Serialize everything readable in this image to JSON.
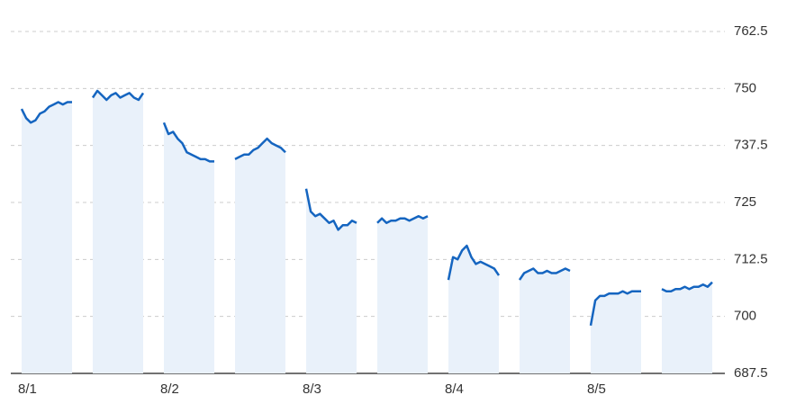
{
  "chart_data": {
    "type": "line",
    "categories": [
      "8/1",
      null,
      "8/2",
      null,
      "8/3",
      null,
      "8/4",
      null,
      "8/5",
      null
    ],
    "sessions": [
      {
        "values": [
          745.5,
          743.5,
          742.5,
          743,
          744.5,
          745,
          746,
          746.5,
          747,
          746.5,
          747,
          747
        ]
      },
      {
        "values": [
          748,
          749.5,
          748.5,
          747.5,
          748.5,
          749,
          748,
          748.5,
          749,
          748,
          747.5,
          749
        ]
      },
      {
        "values": [
          742.5,
          740,
          740.5,
          739,
          738,
          736,
          735.5,
          735,
          734.5,
          734.5,
          734,
          734
        ]
      },
      {
        "values": [
          734.5,
          735,
          735.5,
          735.5,
          736.5,
          737,
          738,
          739,
          738,
          737.5,
          737,
          736
        ]
      },
      {
        "values": [
          728,
          723,
          722,
          722.5,
          721.5,
          720.5,
          721,
          719,
          720,
          720,
          721,
          720.5
        ]
      },
      {
        "values": [
          720.5,
          721.5,
          720.5,
          721,
          721,
          721.5,
          721.5,
          721,
          721.5,
          722,
          721.5,
          722
        ]
      },
      {
        "values": [
          708,
          713,
          712.5,
          714.5,
          715.5,
          713,
          711.5,
          712,
          711.5,
          711,
          710.5,
          709
        ]
      },
      {
        "values": [
          708,
          709.5,
          710,
          710.5,
          709.5,
          709.5,
          710,
          709.5,
          709.5,
          710,
          710.5,
          710
        ]
      },
      {
        "values": [
          698,
          703.5,
          704.5,
          704.5,
          705,
          705,
          705,
          705.5,
          705,
          705.5,
          705.5,
          705.5
        ]
      },
      {
        "values": [
          706,
          705.5,
          705.5,
          706,
          706,
          706.5,
          706,
          706.5,
          706.5,
          707,
          706.5,
          707.5
        ]
      }
    ],
    "color": "#1565c0",
    "fill_color": "#e9f1fa",
    "ylim": [
      687.5,
      762.5
    ],
    "yticks": [
      687.5,
      700,
      712.5,
      725,
      737.5,
      750,
      762.5
    ],
    "grid": true
  }
}
